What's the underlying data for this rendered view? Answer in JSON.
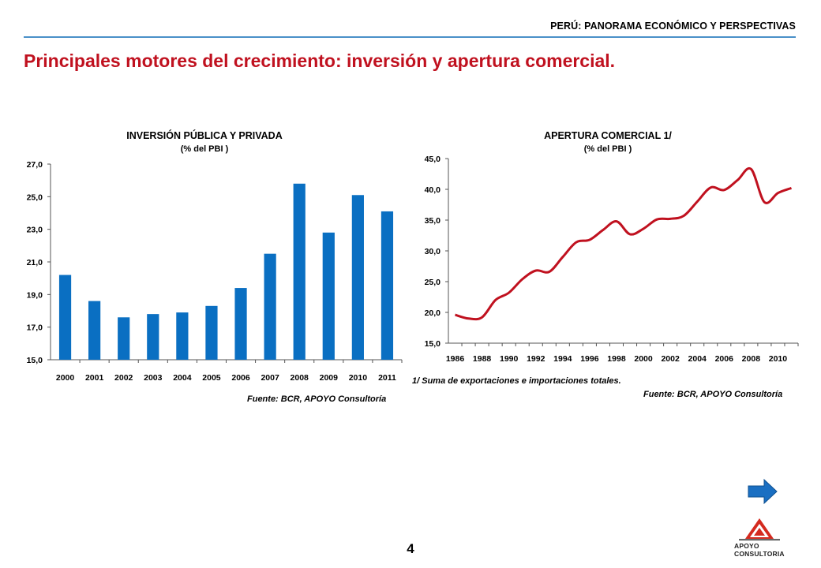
{
  "header": {
    "text": "PERÚ: PANORAMA ECONÓMICO Y PERSPECTIVAS"
  },
  "page": {
    "title": "Principales motores del crecimiento: inversión y apertura comercial.",
    "number": "4"
  },
  "colors": {
    "title_red": "#c0111f",
    "bar_blue": "#0a6fc2",
    "line_red": "#c0111f",
    "rule_blue": "#4a90c8",
    "arrow_blue": "#1a6fc2"
  },
  "chart_data": [
    {
      "type": "bar",
      "title": "INVERSIÓN PÚBLICA Y PRIVADA",
      "subtitle": "(% del PBI )",
      "categories": [
        "2000",
        "2001",
        "2002",
        "2003",
        "2004",
        "2005",
        "2006",
        "2007",
        "2008",
        "2009",
        "2010",
        "2011"
      ],
      "values": [
        20.2,
        18.6,
        17.6,
        17.8,
        17.9,
        18.3,
        19.4,
        21.5,
        25.8,
        22.8,
        25.1,
        24.1
      ],
      "ylim": [
        15.0,
        27.0
      ],
      "yticks": [
        "15,0",
        "17,0",
        "19,0",
        "21,0",
        "23,0",
        "25,0",
        "27,0"
      ],
      "source": "Fuente: BCR, APOYO Consultoría",
      "grid": false
    },
    {
      "type": "line",
      "title": "APERTURA COMERCIAL  1/",
      "subtitle": "(% del PBI )",
      "x": [
        1986,
        1987,
        1988,
        1989,
        1990,
        1991,
        1992,
        1993,
        1994,
        1995,
        1996,
        1997,
        1998,
        1999,
        2000,
        2001,
        2002,
        2003,
        2004,
        2005,
        2006,
        2007,
        2008,
        2009,
        2010,
        2011
      ],
      "series": [
        {
          "values": [
            19.6,
            19.0,
            19.2,
            22.0,
            23.2,
            25.4,
            26.8,
            26.6,
            29.0,
            31.4,
            31.8,
            33.4,
            34.8,
            32.7,
            33.6,
            35.1,
            35.2,
            35.7,
            38.0,
            40.3,
            39.9,
            41.5,
            43.3,
            37.9,
            39.4,
            40.2
          ]
        }
      ],
      "xticks": [
        "1986",
        "1988",
        "1990",
        "1992",
        "1994",
        "1996",
        "1998",
        "2000",
        "2002",
        "2004",
        "2006",
        "2008",
        "2010"
      ],
      "ylim": [
        15.0,
        45.0
      ],
      "yticks": [
        "15,0",
        "20,0",
        "25,0",
        "30,0",
        "35,0",
        "40,0",
        "45,0"
      ],
      "note": "1/ Suma de exportaciones e importaciones totales.",
      "source": "Fuente: BCR, APOYO Consultoría",
      "grid": false
    }
  ],
  "logo": {
    "line1": "APOYO",
    "line2": "CONSULTORIA"
  }
}
